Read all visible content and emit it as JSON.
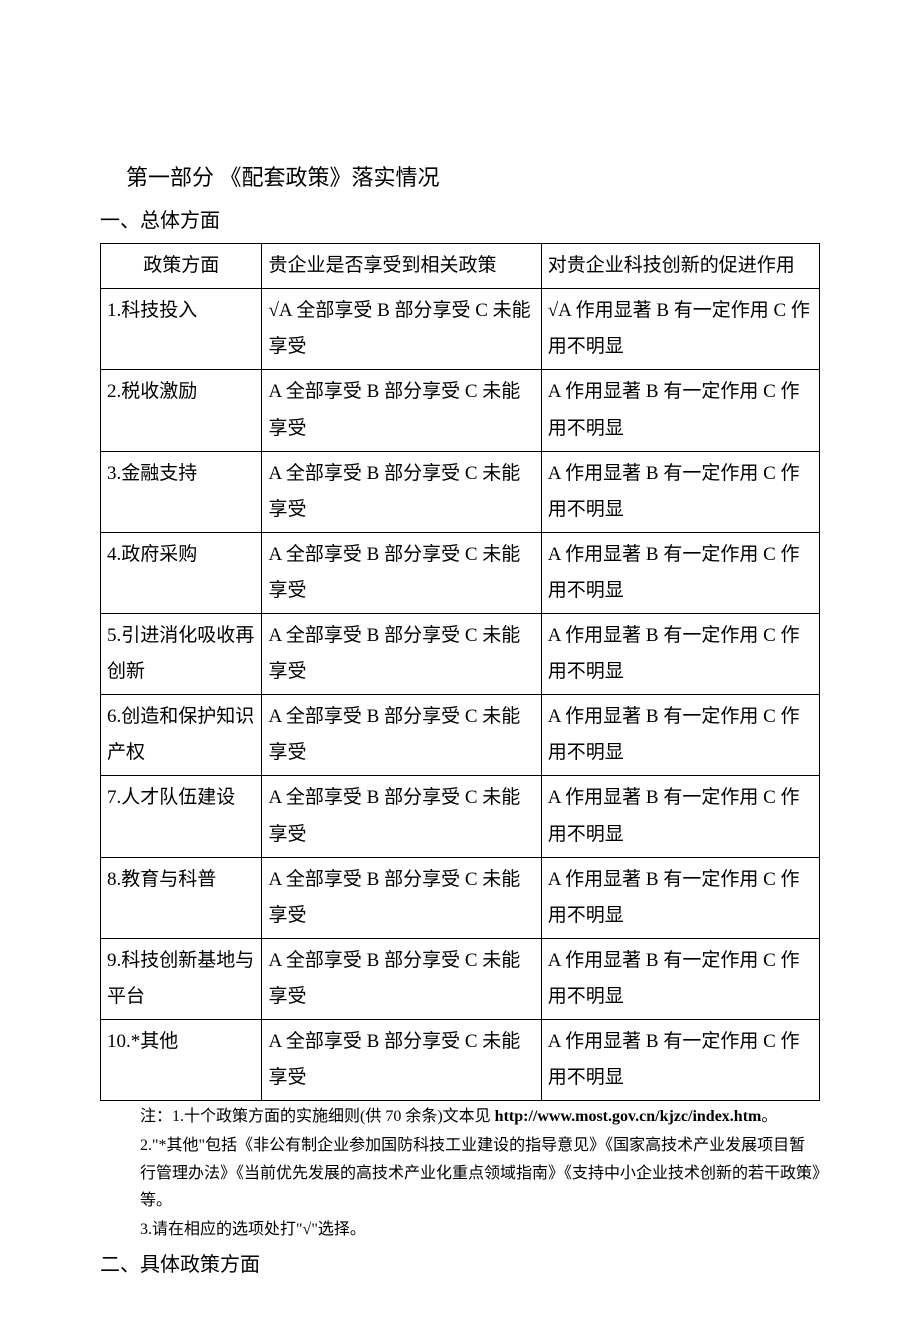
{
  "title": "第一部分  《配套政策》落实情况",
  "subtitle1": "一、总体方面",
  "subtitle2": "二、具体政策方面",
  "table": {
    "headers": {
      "col1": "政策方面",
      "col2": "贵企业是否享受到相关政策",
      "col3": "对贵企业科技创新的促进作用"
    },
    "options_col2": "A 全部享受   B 部分享受   C 未能享受",
    "options_col2_r1": "√A 全部享受   B 部分享受   C 未能享受",
    "options_col2_r5": "A 全部享受  B 部分享受   C 未能享受",
    "options_col3": "A 作用显著  B 有一定作用  C 作用不明显",
    "options_col3_r1": "√A 作用显著  B 有一定作用  C 作用不明显",
    "rows": [
      {
        "label": "1.科技投入"
      },
      {
        "label": "2.税收激励"
      },
      {
        "label": "3.金融支持"
      },
      {
        "label": "4.政府采购"
      },
      {
        "label": "5.引进消化吸收再创新"
      },
      {
        "label": "6.创造和保护知识产权"
      },
      {
        "label": "7.人才队伍建设"
      },
      {
        "label": "8.教育与科普"
      },
      {
        "label": "9.科技创新基地与平台"
      },
      {
        "label": "10.*其他"
      }
    ]
  },
  "notes": {
    "line1_a": "注：1.十个政策方面的实施细则(供 70 余条)文本见 ",
    "line1_b": "http://www.most.gov.cn/kjzc/index.htm",
    "line1_c": "。",
    "line2": "2.\"*其他\"包括《非公有制企业参加国防科技工业建设的指导意见》《国家高技术产业发展项目暂行管理办法》《当前优先发展的高技术产业化重点领域指南》《支持中小企业技术创新的若干政策》等。",
    "line3": "3.请在相应的选项处打\"√\"选择。"
  }
}
